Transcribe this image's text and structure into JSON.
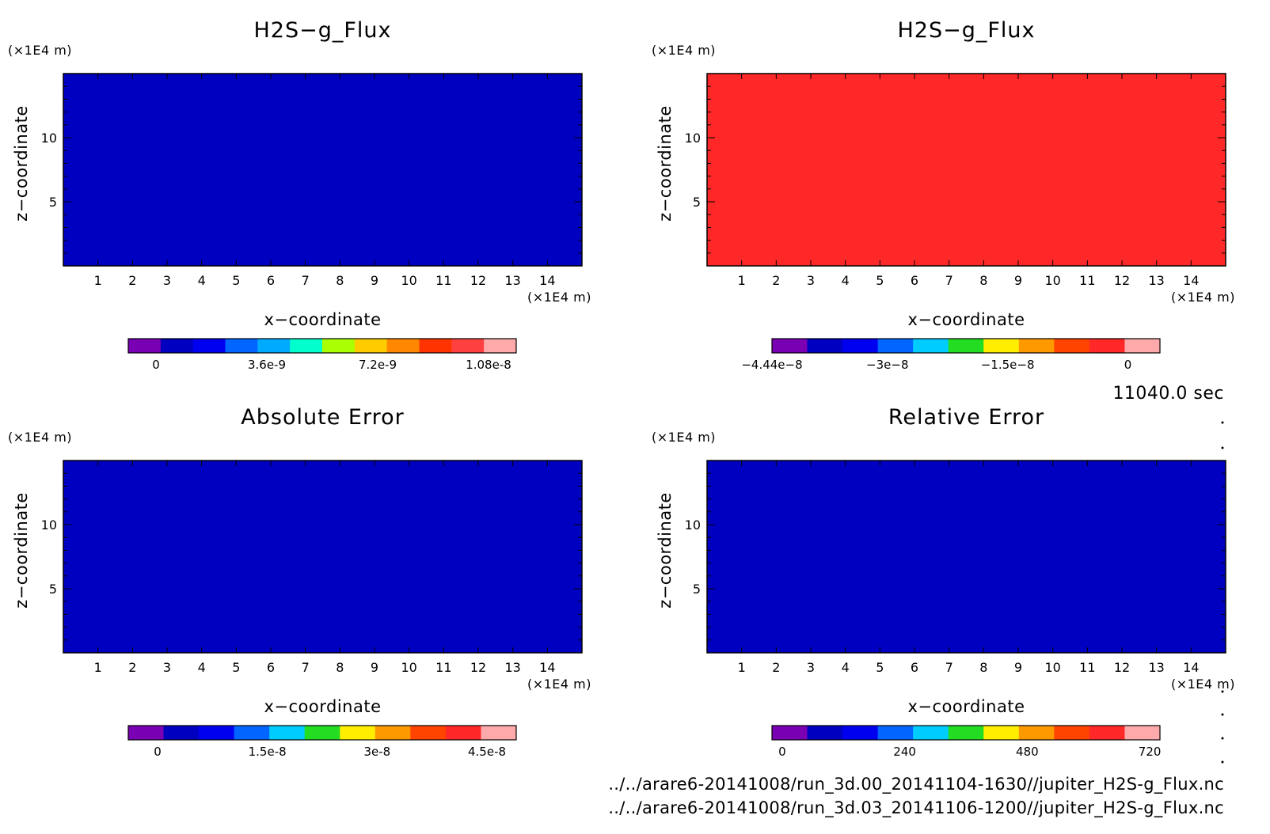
{
  "time_label": "11040.0 sec",
  "file_paths": [
    "../../arare6-20141008/run_3d.00_20141104-1630//jupiter_H2S-g_Flux.nc",
    "../../arare6-20141008/run_3d.03_20141106-1200//jupiter_H2S-g_Flux.nc"
  ],
  "chart_data": [
    {
      "type": "heatmap",
      "title": "H2S−g_Flux",
      "xlabel": "x−coordinate",
      "ylabel": "z−coordinate",
      "x_unit": "(×1E4 m)",
      "y_unit": "(×1E4 m)",
      "xlim": [
        0,
        15
      ],
      "ylim": [
        0,
        15
      ],
      "x_ticks": [
        "1",
        "2",
        "3",
        "4",
        "5",
        "6",
        "7",
        "8",
        "9",
        "10",
        "11",
        "12",
        "13",
        "14"
      ],
      "y_ticks": [
        "5",
        "10"
      ],
      "field_color": "#0000c0",
      "colorbar": {
        "colors": [
          "#7a00b4",
          "#0000c0",
          "#0000f0",
          "#0066ff",
          "#00aaff",
          "#00ffcc",
          "#aaff00",
          "#ffcc00",
          "#ff8800",
          "#ff3300",
          "#ff4040",
          "#ffaaaa"
        ],
        "ticks": [
          "0",
          "3.6e-9",
          "7.2e-9",
          "1.08e-8"
        ],
        "tick_values": [
          0,
          3.6e-09,
          7.2e-09,
          1.08e-08
        ],
        "range": [
          -9e-10,
          1.17e-08
        ]
      }
    },
    {
      "type": "heatmap",
      "title": "H2S−g_Flux",
      "xlabel": "x−coordinate",
      "ylabel": "z−coordinate",
      "x_unit": "(×1E4 m)",
      "y_unit": "(×1E4 m)",
      "xlim": [
        0,
        15
      ],
      "ylim": [
        0,
        15
      ],
      "x_ticks": [
        "1",
        "2",
        "3",
        "4",
        "5",
        "6",
        "7",
        "8",
        "9",
        "10",
        "11",
        "12",
        "13",
        "14"
      ],
      "y_ticks": [
        "5",
        "10"
      ],
      "field_color": "#ff2828",
      "colorbar": {
        "colors": [
          "#7a00b4",
          "#0000c0",
          "#0000f0",
          "#0066ff",
          "#00ccff",
          "#22dd22",
          "#ffee00",
          "#ff9900",
          "#ff4400",
          "#ff2828",
          "#ffaaaa"
        ],
        "ticks": [
          "−4.44e−8",
          "−3e−8",
          "−1.5e−8",
          "0"
        ],
        "tick_values": [
          -4.44e-08,
          -3e-08,
          -1.5e-08,
          0
        ],
        "range": [
          -4.44e-08,
          4e-09
        ]
      }
    },
    {
      "type": "heatmap",
      "title": "Absolute Error",
      "xlabel": "x−coordinate",
      "ylabel": "z−coordinate",
      "x_unit": "(×1E4 m)",
      "y_unit": "(×1E4 m)",
      "xlim": [
        0,
        15
      ],
      "ylim": [
        0,
        15
      ],
      "x_ticks": [
        "1",
        "2",
        "3",
        "4",
        "5",
        "6",
        "7",
        "8",
        "9",
        "10",
        "11",
        "12",
        "13",
        "14"
      ],
      "y_ticks": [
        "5",
        "10"
      ],
      "field_color": "#0000c0",
      "colorbar": {
        "colors": [
          "#7a00b4",
          "#0000c0",
          "#0000f0",
          "#0066ff",
          "#00ccff",
          "#22dd22",
          "#ffee00",
          "#ff9900",
          "#ff4400",
          "#ff2828",
          "#ffaaaa"
        ],
        "ticks": [
          "0",
          "1.5e-8",
          "3e-8",
          "4.5e-8"
        ],
        "tick_values": [
          0,
          1.5e-08,
          3e-08,
          4.5e-08
        ],
        "range": [
          -4e-09,
          4.9e-08
        ]
      }
    },
    {
      "type": "heatmap",
      "title": "Relative Error",
      "xlabel": "x−coordinate",
      "ylabel": "z−coordinate",
      "x_unit": "(×1E4 m)",
      "y_unit": "(×1E4 m)",
      "xlim": [
        0,
        15
      ],
      "ylim": [
        0,
        15
      ],
      "x_ticks": [
        "1",
        "2",
        "3",
        "4",
        "5",
        "6",
        "7",
        "8",
        "9",
        "10",
        "11",
        "12",
        "13",
        "14"
      ],
      "y_ticks": [
        "5",
        "10"
      ],
      "field_color": "#0000c0",
      "colorbar": {
        "colors": [
          "#7a00b4",
          "#0000c0",
          "#0000f0",
          "#0066ff",
          "#00ccff",
          "#22dd22",
          "#ffee00",
          "#ff9900",
          "#ff4400",
          "#ff2828",
          "#ffaaaa"
        ],
        "ticks": [
          "0",
          "240",
          "480",
          "720"
        ],
        "tick_values": [
          0,
          240,
          480,
          720
        ],
        "range": [
          -20,
          740
        ]
      }
    }
  ]
}
